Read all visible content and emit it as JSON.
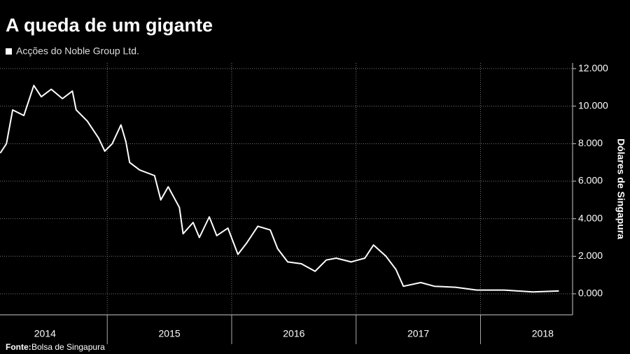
{
  "chart_data": {
    "type": "line",
    "title": "A queda de um gigante",
    "y_label": "Dólares de Singapura",
    "source_label": "Fonte:",
    "source": "Bolsa de Singapura",
    "series": [
      {
        "name": "Acções do Noble Group Ltd.",
        "color": "#ffffff",
        "x": [
          2014.14,
          2014.19,
          2014.24,
          2014.33,
          2014.41,
          2014.47,
          2014.55,
          2014.64,
          2014.72,
          2014.75,
          2014.84,
          2014.93,
          2014.98,
          2015.04,
          2015.11,
          2015.15,
          2015.18,
          2015.26,
          2015.38,
          2015.43,
          2015.49,
          2015.58,
          2015.61,
          2015.69,
          2015.74,
          2015.82,
          2015.88,
          2015.97,
          2016.05,
          2016.12,
          2016.21,
          2016.31,
          2016.37,
          2016.45,
          2016.56,
          2016.67,
          2016.76,
          2016.84,
          2016.96,
          2017.07,
          2017.14,
          2017.24,
          2017.32,
          2017.38,
          2017.52,
          2017.63,
          2017.8,
          2017.97,
          2018.19,
          2018.42,
          2018.63
        ],
        "values": [
          7.5,
          8.0,
          9.8,
          9.5,
          11.1,
          10.5,
          10.9,
          10.4,
          10.8,
          9.8,
          9.2,
          8.3,
          7.6,
          8.0,
          9.0,
          8.1,
          7.0,
          6.6,
          6.3,
          5.0,
          5.7,
          4.6,
          3.2,
          3.8,
          3.0,
          4.1,
          3.1,
          3.5,
          2.1,
          2.7,
          3.6,
          3.4,
          2.4,
          1.7,
          1.6,
          1.2,
          1.8,
          1.9,
          1.7,
          1.9,
          2.6,
          2.0,
          1.3,
          0.4,
          0.6,
          0.4,
          0.35,
          0.2,
          0.2,
          0.1,
          0.15
        ]
      }
    ],
    "xlim": [
      2014.138,
      2018.74
    ],
    "xticks": [
      {
        "value": 2014.5,
        "label": "2014"
      },
      {
        "value": 2015.5,
        "label": "2015"
      },
      {
        "value": 2016.5,
        "label": "2016"
      },
      {
        "value": 2017.5,
        "label": "2017"
      },
      {
        "value": 2018.5,
        "label": "2018"
      }
    ],
    "ylim": [
      -1.12,
      12.3
    ],
    "yticks": [
      {
        "value": 0,
        "label": "0.000"
      },
      {
        "value": 2,
        "label": "2.000"
      },
      {
        "value": 4,
        "label": "4.000"
      },
      {
        "value": 6,
        "label": "6.000"
      },
      {
        "value": 8,
        "label": "8.000"
      },
      {
        "value": 10,
        "label": "10.000"
      },
      {
        "value": 12,
        "label": "12.000"
      }
    ],
    "grid": true
  }
}
